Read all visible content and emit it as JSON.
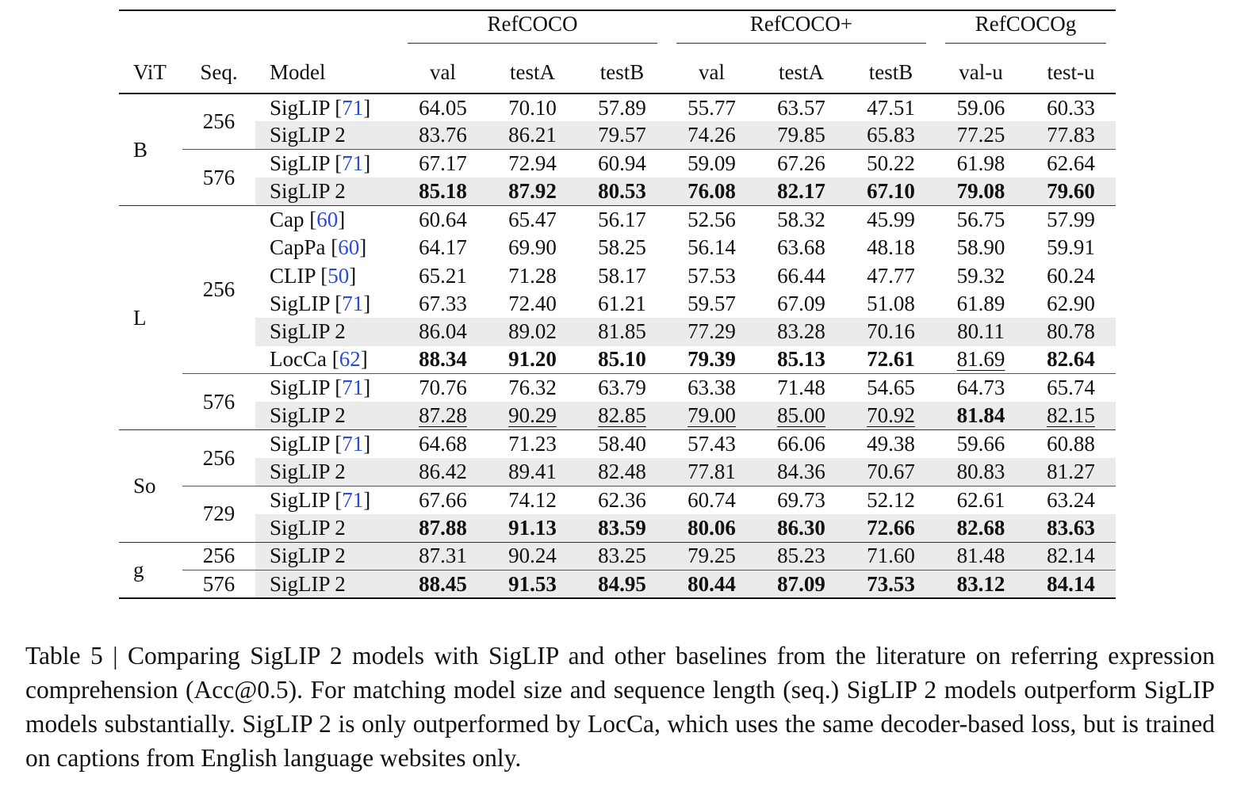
{
  "groups": [
    "RefCOCO",
    "RefCOCO+",
    "RefCOCOg"
  ],
  "columns": {
    "vit": "ViT",
    "seq": "Seq.",
    "model": "Model",
    "metrics": [
      "val",
      "testA",
      "testB",
      "val",
      "testA",
      "testB",
      "val-u",
      "test-u"
    ]
  },
  "rows": [
    {
      "vit": "B",
      "seq": "256",
      "model": "SigLIP",
      "ref": "71",
      "shade": false,
      "vals": [
        "64.05",
        "70.10",
        "57.89",
        "55.77",
        "63.57",
        "47.51",
        "59.06",
        "60.33"
      ],
      "fmt": [
        "",
        "",
        "",
        "",
        "",
        "",
        "",
        ""
      ]
    },
    {
      "vit": "",
      "seq": "",
      "model": "SigLIP 2",
      "ref": "",
      "shade": true,
      "vals": [
        "83.76",
        "86.21",
        "79.57",
        "74.26",
        "79.85",
        "65.83",
        "77.25",
        "77.83"
      ],
      "fmt": [
        "",
        "",
        "",
        "",
        "",
        "",
        "",
        ""
      ]
    },
    {
      "vit": "",
      "seq": "576",
      "model": "SigLIP",
      "ref": "71",
      "shade": false,
      "vals": [
        "67.17",
        "72.94",
        "60.94",
        "59.09",
        "67.26",
        "50.22",
        "61.98",
        "62.64"
      ],
      "fmt": [
        "",
        "",
        "",
        "",
        "",
        "",
        "",
        ""
      ]
    },
    {
      "vit": "",
      "seq": "",
      "model": "SigLIP 2",
      "ref": "",
      "shade": true,
      "vals": [
        "85.18",
        "87.92",
        "80.53",
        "76.08",
        "82.17",
        "67.10",
        "79.08",
        "79.60"
      ],
      "fmt": [
        "b",
        "b",
        "b",
        "b",
        "b",
        "b",
        "b",
        "b"
      ]
    },
    {
      "vit": "L",
      "seq": "256",
      "model": "Cap",
      "ref": "60",
      "shade": false,
      "vals": [
        "60.64",
        "65.47",
        "56.17",
        "52.56",
        "58.32",
        "45.99",
        "56.75",
        "57.99"
      ],
      "fmt": [
        "",
        "",
        "",
        "",
        "",
        "",
        "",
        ""
      ]
    },
    {
      "vit": "",
      "seq": "",
      "model": "CapPa",
      "ref": "60",
      "shade": false,
      "vals": [
        "64.17",
        "69.90",
        "58.25",
        "56.14",
        "63.68",
        "48.18",
        "58.90",
        "59.91"
      ],
      "fmt": [
        "",
        "",
        "",
        "",
        "",
        "",
        "",
        ""
      ]
    },
    {
      "vit": "",
      "seq": "",
      "model": "CLIP",
      "ref": "50",
      "shade": false,
      "vals": [
        "65.21",
        "71.28",
        "58.17",
        "57.53",
        "66.44",
        "47.77",
        "59.32",
        "60.24"
      ],
      "fmt": [
        "",
        "",
        "",
        "",
        "",
        "",
        "",
        ""
      ]
    },
    {
      "vit": "",
      "seq": "",
      "model": "SigLIP",
      "ref": "71",
      "shade": false,
      "vals": [
        "67.33",
        "72.40",
        "61.21",
        "59.57",
        "67.09",
        "51.08",
        "61.89",
        "62.90"
      ],
      "fmt": [
        "",
        "",
        "",
        "",
        "",
        "",
        "",
        ""
      ]
    },
    {
      "vit": "",
      "seq": "",
      "model": "SigLIP 2",
      "ref": "",
      "shade": true,
      "vals": [
        "86.04",
        "89.02",
        "81.85",
        "77.29",
        "83.28",
        "70.16",
        "80.11",
        "80.78"
      ],
      "fmt": [
        "",
        "",
        "",
        "",
        "",
        "",
        "",
        ""
      ]
    },
    {
      "vit": "",
      "seq": "",
      "model": "LocCa",
      "ref": "62",
      "shade": false,
      "vals": [
        "88.34",
        "91.20",
        "85.10",
        "79.39",
        "85.13",
        "72.61",
        "81.69",
        "82.64"
      ],
      "fmt": [
        "b",
        "b",
        "b",
        "b",
        "b",
        "b",
        "u",
        "b"
      ]
    },
    {
      "vit": "",
      "seq": "576",
      "model": "SigLIP",
      "ref": "71",
      "shade": false,
      "vals": [
        "70.76",
        "76.32",
        "63.79",
        "63.38",
        "71.48",
        "54.65",
        "64.73",
        "65.74"
      ],
      "fmt": [
        "",
        "",
        "",
        "",
        "",
        "",
        "",
        ""
      ]
    },
    {
      "vit": "",
      "seq": "",
      "model": "SigLIP 2",
      "ref": "",
      "shade": true,
      "vals": [
        "87.28",
        "90.29",
        "82.85",
        "79.00",
        "85.00",
        "70.92",
        "81.84",
        "82.15"
      ],
      "fmt": [
        "u",
        "u",
        "u",
        "u",
        "u",
        "u",
        "b",
        "u"
      ]
    },
    {
      "vit": "So",
      "seq": "256",
      "model": "SigLIP",
      "ref": "71",
      "shade": false,
      "vals": [
        "64.68",
        "71.23",
        "58.40",
        "57.43",
        "66.06",
        "49.38",
        "59.66",
        "60.88"
      ],
      "fmt": [
        "",
        "",
        "",
        "",
        "",
        "",
        "",
        ""
      ]
    },
    {
      "vit": "",
      "seq": "",
      "model": "SigLIP 2",
      "ref": "",
      "shade": true,
      "vals": [
        "86.42",
        "89.41",
        "82.48",
        "77.81",
        "84.36",
        "70.67",
        "80.83",
        "81.27"
      ],
      "fmt": [
        "",
        "",
        "",
        "",
        "",
        "",
        "",
        ""
      ]
    },
    {
      "vit": "",
      "seq": "729",
      "model": "SigLIP",
      "ref": "71",
      "shade": false,
      "vals": [
        "67.66",
        "74.12",
        "62.36",
        "60.74",
        "69.73",
        "52.12",
        "62.61",
        "63.24"
      ],
      "fmt": [
        "",
        "",
        "",
        "",
        "",
        "",
        "",
        ""
      ]
    },
    {
      "vit": "",
      "seq": "",
      "model": "SigLIP 2",
      "ref": "",
      "shade": true,
      "vals": [
        "87.88",
        "91.13",
        "83.59",
        "80.06",
        "86.30",
        "72.66",
        "82.68",
        "83.63"
      ],
      "fmt": [
        "b",
        "b",
        "b",
        "b",
        "b",
        "b",
        "b",
        "b"
      ]
    },
    {
      "vit": "g",
      "seq": "256",
      "model": "SigLIP 2",
      "ref": "",
      "shade": true,
      "vals": [
        "87.31",
        "90.24",
        "83.25",
        "79.25",
        "85.23",
        "71.60",
        "81.48",
        "82.14"
      ],
      "fmt": [
        "",
        "",
        "",
        "",
        "",
        "",
        "",
        ""
      ]
    },
    {
      "vit": "",
      "seq": "576",
      "model": "SigLIP 2",
      "ref": "",
      "shade": true,
      "vals": [
        "88.45",
        "91.53",
        "84.95",
        "80.44",
        "87.09",
        "73.53",
        "83.12",
        "84.14"
      ],
      "fmt": [
        "b",
        "b",
        "b",
        "b",
        "b",
        "b",
        "b",
        "b"
      ]
    }
  ],
  "caption": "Table 5 | Comparing SigLIP 2 models with SigLIP and other baselines from the literature on referring expression comprehension (Acc@0.5). For matching model size and sequence length (seq.) SigLIP 2 models outperform SigLIP models substantially. SigLIP 2 is only outperformed by LocCa, which uses the same decoder-based loss, but is trained on captions from English language websites only."
}
